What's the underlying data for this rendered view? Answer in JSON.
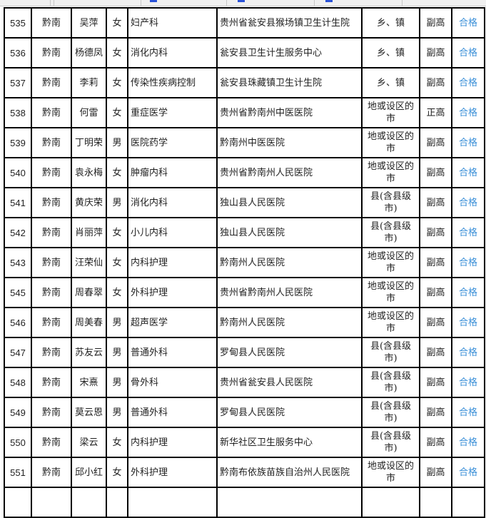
{
  "rows": [
    {
      "no": "535",
      "region": "黔南",
      "name": "吴萍",
      "sex": "女",
      "specialty": "妇产科",
      "unit": "贵州省瓮安县猴场镇卫生计生院",
      "level": "乡、镇",
      "title": "副高",
      "result": "合格"
    },
    {
      "no": "536",
      "region": "黔南",
      "name": "杨德凤",
      "sex": "女",
      "specialty": "消化内科",
      "unit": "瓮安县卫生计生服务中心",
      "level": "乡、镇",
      "title": "副高",
      "result": "合格"
    },
    {
      "no": "537",
      "region": "黔南",
      "name": "李莉",
      "sex": "女",
      "specialty": "传染性疾病控制",
      "unit": "瓮安县珠藏镇卫生计生院",
      "level": "乡、镇",
      "title": "副高",
      "result": "合格"
    },
    {
      "no": "538",
      "region": "黔南",
      "name": "何雷",
      "sex": "女",
      "specialty": "重症医学",
      "unit": "贵州省黔南州中医医院",
      "level": "地或设区的市",
      "title": "正高",
      "result": "合格"
    },
    {
      "no": "539",
      "region": "黔南",
      "name": "丁明荣",
      "sex": "男",
      "specialty": "医院药学",
      "unit": "黔南州中医医院",
      "level": "地或设区的市",
      "title": "副高",
      "result": "合格"
    },
    {
      "no": "540",
      "region": "黔南",
      "name": "袁永梅",
      "sex": "女",
      "specialty": "肿瘤内科",
      "unit": "贵州省黔南州人民医院",
      "level": "地或设区的市",
      "title": "副高",
      "result": "合格"
    },
    {
      "no": "541",
      "region": "黔南",
      "name": "黄庆荣",
      "sex": "男",
      "specialty": "消化内科",
      "unit": "独山县人民医院",
      "level": "县(含县级市)",
      "title": "副高",
      "result": "合格"
    },
    {
      "no": "542",
      "region": "黔南",
      "name": "肖丽萍",
      "sex": "女",
      "specialty": "小儿内科",
      "unit": "独山县人民医院",
      "level": "县(含县级市)",
      "title": "副高",
      "result": "合格"
    },
    {
      "no": "543",
      "region": "黔南",
      "name": "汪荣仙",
      "sex": "女",
      "specialty": "内科护理",
      "unit": "黔南州人民医院",
      "level": "地或设区的市",
      "title": "副高",
      "result": "合格"
    },
    {
      "no": "545",
      "region": "黔南",
      "name": "周春翠",
      "sex": "女",
      "specialty": "外科护理",
      "unit": "贵州省黔南州人民医院",
      "level": "地或设区的市",
      "title": "副高",
      "result": "合格"
    },
    {
      "no": "546",
      "region": "黔南",
      "name": "周美春",
      "sex": "男",
      "specialty": "超声医学",
      "unit": "黔南州人民医院",
      "level": "地或设区的市",
      "title": "副高",
      "result": "合格"
    },
    {
      "no": "547",
      "region": "黔南",
      "name": "苏友云",
      "sex": "男",
      "specialty": "普通外科",
      "unit": "罗甸县人民医院",
      "level": "县(含县级市)",
      "title": "副高",
      "result": "合格"
    },
    {
      "no": "548",
      "region": "黔南",
      "name": "宋熹",
      "sex": "男",
      "specialty": "骨外科",
      "unit": "贵州省瓮安县人民医院",
      "level": "县(含县级市)",
      "title": "副高",
      "result": "合格"
    },
    {
      "no": "549",
      "region": "黔南",
      "name": "莫云恩",
      "sex": "男",
      "specialty": "普通外科",
      "unit": "罗甸县人民医院",
      "level": "县(含县级市)",
      "title": "副高",
      "result": "合格"
    },
    {
      "no": "550",
      "region": "黔南",
      "name": "梁云",
      "sex": "女",
      "specialty": "内科护理",
      "unit": "新华社区卫生服务中心",
      "level": "县(含县级市)",
      "title": "副高",
      "result": "合格"
    },
    {
      "no": "551",
      "region": "黔南",
      "name": "邱小红",
      "sex": "女",
      "specialty": "外科护理",
      "unit": "黔南布依族苗族自治州人民医院",
      "level": "地或设区的市",
      "title": "副高",
      "result": "合格"
    }
  ],
  "colors": {
    "result_link": "#3a8fd8",
    "border": "#000000"
  }
}
